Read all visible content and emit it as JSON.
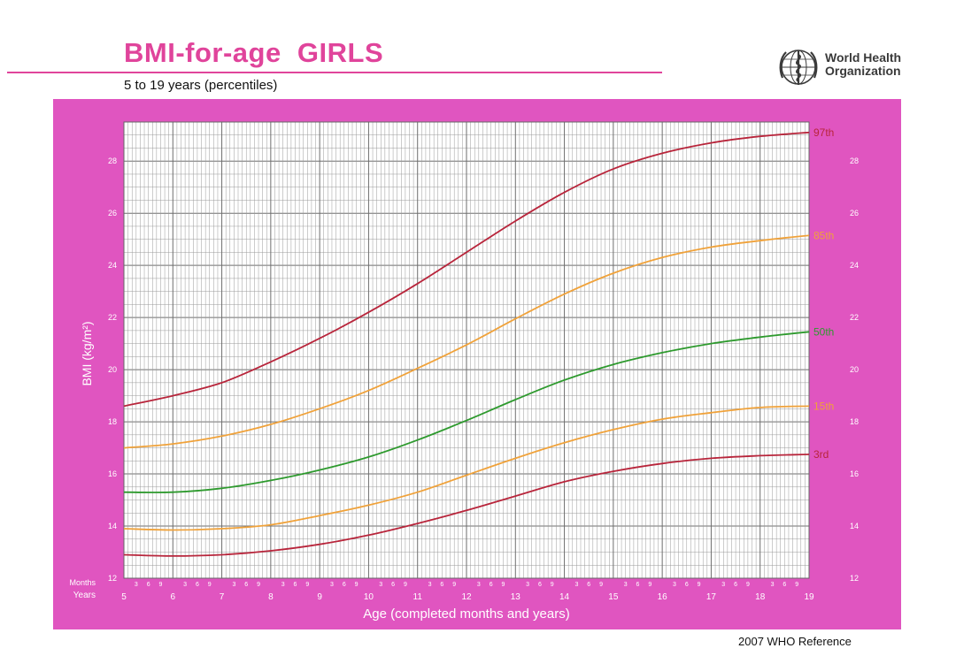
{
  "header": {
    "title": "BMI-for-age  GIRLS",
    "subtitle": "5 to 19 years (percentiles)",
    "org_line1": "World Health",
    "org_line2": "Organization"
  },
  "footer": {
    "reference": "2007 WHO Reference"
  },
  "colors": {
    "brand": "#e0449b",
    "panel": "#e055c0",
    "grid_fill": "#ffffff",
    "grid_line": "#9a9a9a",
    "dark_red": "#b8253b",
    "orange": "#f0a23a",
    "green": "#2e9a2e"
  },
  "chart_data": {
    "type": "line",
    "ylabel": "BMI (kg/m²)",
    "xlabel": "Age (completed months and years)",
    "xlim": [
      5,
      19
    ],
    "ylim": [
      12,
      29.5
    ],
    "grid": true,
    "y_ticks": [
      12,
      14,
      16,
      18,
      20,
      22,
      24,
      26,
      28
    ],
    "x_year_ticks": [
      5,
      6,
      7,
      8,
      9,
      10,
      11,
      12,
      13,
      14,
      15,
      16,
      17,
      18,
      19
    ],
    "x_month_ticks": [
      "3",
      "6",
      "9"
    ],
    "row_labels": {
      "months": "Months",
      "years": "Years"
    },
    "x": [
      5,
      6,
      7,
      8,
      9,
      10,
      11,
      12,
      13,
      14,
      15,
      16,
      17,
      18,
      19
    ],
    "series": [
      {
        "name": "97th",
        "color": "#b8253b",
        "values": [
          18.6,
          19.0,
          19.5,
          20.3,
          21.2,
          22.2,
          23.3,
          24.5,
          25.7,
          26.8,
          27.7,
          28.3,
          28.7,
          28.95,
          29.1
        ]
      },
      {
        "name": "85th",
        "color": "#f0a23a",
        "values": [
          17.0,
          17.15,
          17.45,
          17.9,
          18.5,
          19.2,
          20.05,
          20.95,
          21.95,
          22.9,
          23.7,
          24.3,
          24.7,
          24.95,
          25.15
        ]
      },
      {
        "name": "50th",
        "color": "#2e9a2e",
        "values": [
          15.3,
          15.3,
          15.45,
          15.75,
          16.15,
          16.65,
          17.3,
          18.05,
          18.85,
          19.6,
          20.2,
          20.65,
          21.0,
          21.25,
          21.45
        ]
      },
      {
        "name": "15th",
        "color": "#f0a23a",
        "values": [
          13.9,
          13.85,
          13.9,
          14.05,
          14.4,
          14.8,
          15.3,
          15.95,
          16.6,
          17.2,
          17.7,
          18.1,
          18.35,
          18.55,
          18.6
        ]
      },
      {
        "name": "3rd",
        "color": "#b8253b",
        "values": [
          12.9,
          12.85,
          12.9,
          13.05,
          13.3,
          13.65,
          14.1,
          14.6,
          15.15,
          15.7,
          16.1,
          16.4,
          16.6,
          16.7,
          16.75
        ]
      }
    ]
  }
}
